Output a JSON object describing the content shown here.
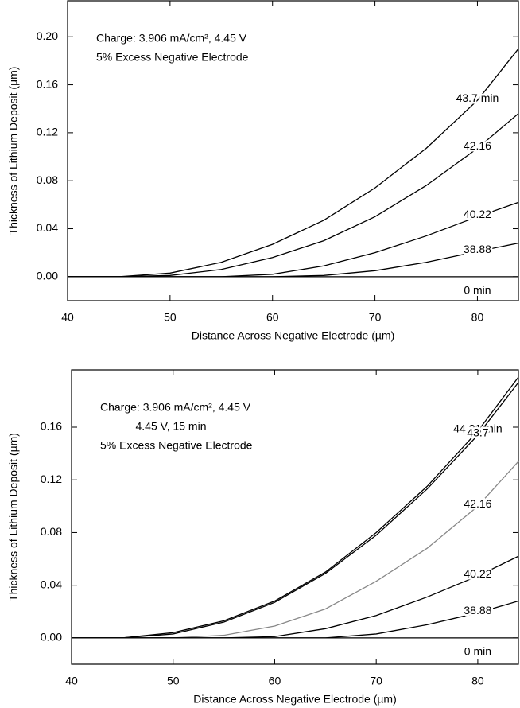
{
  "chart_data": [
    {
      "type": "line",
      "annotations": [
        "Charge: 3.906 mA/cm², 4.45 V",
        "5% Excess Negative Electrode"
      ],
      "x_label": "Distance Across Negative Electrode (µm)",
      "y_label": "Thickness of Lithium Deposit (µm)",
      "x": [
        40,
        45,
        50,
        55,
        60,
        65,
        70,
        75,
        80,
        84
      ],
      "xlim": [
        40,
        84
      ],
      "xticks": [
        40,
        50,
        60,
        70,
        80
      ],
      "ylim": [
        -0.02,
        0.23
      ],
      "yticks": [
        {
          "value": 0,
          "label": "0.00"
        },
        {
          "value": 0.04,
          "label": "0.04"
        },
        {
          "value": 0.08,
          "label": "0.08"
        },
        {
          "value": 0.12,
          "label": "0.12"
        },
        {
          "value": 0.16,
          "label": "0.16"
        },
        {
          "value": 0.2,
          "label": "0.20"
        }
      ],
      "series": [
        {
          "name": "43.7 min",
          "color": "#000000",
          "values": [
            0,
            0,
            0.003,
            0.012,
            0.027,
            0.047,
            0.074,
            0.107,
            0.147,
            0.19
          ]
        },
        {
          "name": "42.16",
          "color": "#000000",
          "values": [
            0,
            0,
            0.001,
            0.006,
            0.016,
            0.03,
            0.05,
            0.076,
            0.107,
            0.136
          ]
        },
        {
          "name": "40.22",
          "color": "#000000",
          "values": [
            0,
            0,
            0,
            0,
            0.002,
            0.009,
            0.02,
            0.034,
            0.05,
            0.062
          ]
        },
        {
          "name": "38.88",
          "color": "#000000",
          "values": [
            0,
            0,
            0,
            0,
            0,
            0.001,
            0.005,
            0.012,
            0.021,
            0.028
          ]
        },
        {
          "name": "0 min",
          "color": "#000000",
          "values": [
            0,
            0,
            0,
            0,
            0,
            0,
            0,
            0,
            0,
            0
          ]
        }
      ]
    },
    {
      "type": "line",
      "annotations": [
        "Charge: 3.906 mA/cm², 4.45 V",
        "4.45 V, 15 min",
        "5% Excess Negative Electrode"
      ],
      "x_label": "Distance Across Negative Electrode (µm)",
      "y_label": "Thickness of Lithium Deposit (µm)",
      "x": [
        40,
        45,
        50,
        55,
        60,
        65,
        70,
        75,
        80,
        84
      ],
      "xlim": [
        40,
        84
      ],
      "xticks": [
        40,
        50,
        60,
        70,
        80
      ],
      "ylim": [
        -0.02,
        0.2035
      ],
      "yticks": [
        {
          "value": 0,
          "label": "0.00"
        },
        {
          "value": 0.04,
          "label": "0.04"
        },
        {
          "value": 0.08,
          "label": "0.08"
        },
        {
          "value": 0.12,
          "label": "0.12"
        },
        {
          "value": 0.16,
          "label": "0.16"
        }
      ],
      "series": [
        {
          "name": "44.21 min",
          "color": "#000000",
          "values": [
            0,
            0,
            0.004,
            0.013,
            0.028,
            0.05,
            0.08,
            0.115,
            0.157,
            0.198
          ]
        },
        {
          "name": "43.7",
          "color": "#000000",
          "values": [
            0,
            0,
            0.003,
            0.012,
            0.027,
            0.049,
            0.078,
            0.113,
            0.154,
            0.194
          ]
        },
        {
          "name": "42.16",
          "color": "#888888",
          "values": [
            0,
            0,
            0,
            0.002,
            0.009,
            0.022,
            0.043,
            0.068,
            0.1,
            0.134
          ]
        },
        {
          "name": "40.22",
          "color": "#000000",
          "values": [
            0,
            0,
            0,
            0,
            0.001,
            0.007,
            0.017,
            0.031,
            0.047,
            0.062
          ]
        },
        {
          "name": "38.88",
          "color": "#000000",
          "values": [
            0,
            0,
            0,
            0,
            0,
            0,
            0.003,
            0.01,
            0.019,
            0.028
          ]
        },
        {
          "name": "0 min",
          "color": "#000000",
          "values": [
            0,
            0,
            0,
            0,
            0,
            0,
            0,
            0,
            0,
            0
          ]
        }
      ]
    }
  ]
}
